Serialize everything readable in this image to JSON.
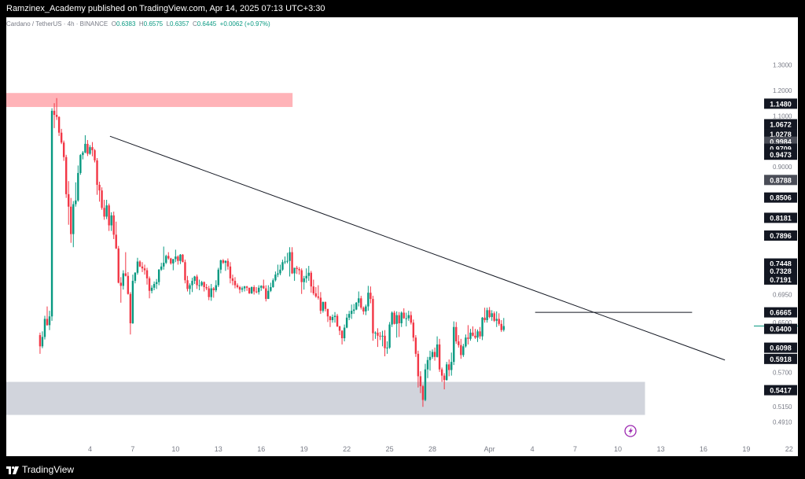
{
  "header": {
    "publish_line": "Ramzinex_Academy published on TradingView.com, Apr 14, 2025 07:13 UTC+3:30"
  },
  "legend": {
    "symbol": "Cardano / TetherUS · 4h · BINANCE",
    "open_label": "O",
    "open": "0.6383",
    "high_label": "H",
    "high": "0.6575",
    "low_label": "L",
    "low": "0.6357",
    "close_label": "C",
    "close": "0.6445",
    "change": "+0.0062 (+0.97%)"
  },
  "footer": {
    "brand": "TradingView"
  },
  "colors": {
    "up": "#089981",
    "down": "#f23645",
    "supply_zone": "#ffb3b8",
    "demand_zone": "#d1d4dc",
    "current_price": "#089981"
  },
  "chart_data": {
    "type": "candlestick",
    "title": "Cardano / TetherUS · 4h · BINANCE",
    "x_ticks": [
      "4",
      "7",
      "10",
      "13",
      "16",
      "19",
      "22",
      "25",
      "28",
      "Apr",
      "4",
      "7",
      "10",
      "13",
      "16",
      "19",
      "22"
    ],
    "y_ticks": [
      "1.3000",
      "1.2000",
      "1.1000",
      "1.0500",
      "0.9000",
      "0.6950",
      "0.6500",
      "0.5700",
      "0.5150",
      "0.4910"
    ],
    "y_range": [
      0.47,
      1.32
    ],
    "price_labels": [
      {
        "value": "1.1480",
        "style": "dark"
      },
      {
        "value": "1.0672",
        "style": "dark"
      },
      {
        "value": "1.0278",
        "style": "dark"
      },
      {
        "value": "0.9984",
        "style": "gray"
      },
      {
        "value": "0.9709",
        "style": "dark"
      },
      {
        "value": "0.9473",
        "style": "dark"
      },
      {
        "value": "0.8788",
        "style": "gray"
      },
      {
        "value": "0.8506",
        "style": "dark"
      },
      {
        "value": "0.8181",
        "style": "dark"
      },
      {
        "value": "0.7896",
        "style": "dark"
      },
      {
        "value": "0.7448",
        "style": "dark"
      },
      {
        "value": "0.7328",
        "style": "dark"
      },
      {
        "value": "0.7191",
        "style": "dark"
      },
      {
        "value": "0.6665",
        "style": "dark"
      },
      {
        "value": "0.6400",
        "style": "dark"
      },
      {
        "value": "0.6098",
        "style": "dark"
      },
      {
        "value": "0.5918",
        "style": "dark"
      },
      {
        "value": "0.5417",
        "style": "dark"
      }
    ],
    "current_price": 0.6445,
    "zones": [
      {
        "name": "supply",
        "from_day": 1,
        "to_day": 18.2,
        "low": 1.135,
        "high": 1.19
      },
      {
        "name": "demand",
        "from_day": 1,
        "to_day": 42.9,
        "low": 0.502,
        "high": 0.555
      }
    ],
    "trendlines": [
      {
        "name": "descending-trendline",
        "x1_day": 5.4,
        "y1": 1.02,
        "x2_day": 48.5,
        "y2": 0.59
      },
      {
        "name": "resistance-line",
        "x1_day": 35.2,
        "y1": 0.6665,
        "x2_day": 46.2,
        "y2": 0.6665
      }
    ],
    "candles_4h": [
      [
        0.63,
        0.634,
        0.6,
        0.612
      ],
      [
        0.612,
        0.636,
        0.609,
        0.627
      ],
      [
        0.627,
        0.661,
        0.623,
        0.656
      ],
      [
        0.656,
        0.676,
        0.645,
        0.646
      ],
      [
        0.646,
        0.669,
        0.638,
        0.66
      ],
      [
        0.66,
        1.13,
        0.653,
        1.12
      ],
      [
        1.12,
        1.15,
        1.052,
        1.104
      ],
      [
        1.104,
        1.17,
        1.084,
        1.096
      ],
      [
        1.096,
        1.098,
        1.021,
        1.034
      ],
      [
        1.034,
        1.049,
        0.989,
        0.995
      ],
      [
        0.995,
        1.003,
        0.923,
        0.938
      ],
      [
        0.938,
        0.947,
        0.85,
        0.856
      ],
      [
        0.856,
        0.877,
        0.807,
        0.836
      ],
      [
        0.836,
        0.85,
        0.778,
        0.792
      ],
      [
        0.792,
        0.845,
        0.771,
        0.84
      ],
      [
        0.84,
        0.875,
        0.836,
        0.846
      ],
      [
        0.846,
        0.905,
        0.844,
        0.89
      ],
      [
        0.89,
        0.95,
        0.887,
        0.946
      ],
      [
        0.946,
        0.962,
        0.929,
        0.956
      ],
      [
        0.956,
        1.024,
        0.953,
        0.99
      ],
      [
        0.99,
        1.005,
        0.942,
        0.951
      ],
      [
        0.951,
        0.985,
        0.947,
        0.977
      ],
      [
        0.977,
        0.997,
        0.941,
        0.965
      ],
      [
        0.965,
        0.97,
        0.917,
        0.925
      ],
      [
        0.925,
        0.934,
        0.855,
        0.871
      ],
      [
        0.871,
        0.876,
        0.844,
        0.862
      ],
      [
        0.862,
        0.867,
        0.831,
        0.834
      ],
      [
        0.834,
        0.847,
        0.815,
        0.82
      ],
      [
        0.82,
        0.847,
        0.816,
        0.838
      ],
      [
        0.838,
        0.841,
        0.797,
        0.806
      ],
      [
        0.806,
        0.827,
        0.797,
        0.822
      ],
      [
        0.822,
        0.828,
        0.784,
        0.791
      ],
      [
        0.791,
        0.812,
        0.768,
        0.769
      ],
      [
        0.769,
        0.773,
        0.713,
        0.714
      ],
      [
        0.714,
        0.723,
        0.682,
        0.709
      ],
      [
        0.709,
        0.734,
        0.703,
        0.729
      ],
      [
        0.729,
        0.763,
        0.724,
        0.725
      ],
      [
        0.725,
        0.731,
        0.695,
        0.696
      ],
      [
        0.696,
        0.699,
        0.631,
        0.649
      ],
      [
        0.649,
        0.727,
        0.648,
        0.717
      ],
      [
        0.717,
        0.731,
        0.713,
        0.73
      ],
      [
        0.73,
        0.754,
        0.727,
        0.748
      ],
      [
        0.748,
        0.75,
        0.739,
        0.74
      ],
      [
        0.74,
        0.747,
        0.731,
        0.737
      ],
      [
        0.737,
        0.743,
        0.727,
        0.734
      ],
      [
        0.734,
        0.738,
        0.711,
        0.721
      ],
      [
        0.721,
        0.724,
        0.689,
        0.701
      ],
      [
        0.701,
        0.71,
        0.697,
        0.706
      ],
      [
        0.706,
        0.716,
        0.702,
        0.712
      ],
      [
        0.712,
        0.72,
        0.704,
        0.715
      ],
      [
        0.715,
        0.736,
        0.71,
        0.735
      ],
      [
        0.735,
        0.746,
        0.733,
        0.74
      ],
      [
        0.74,
        0.772,
        0.735,
        0.746
      ],
      [
        0.746,
        0.759,
        0.744,
        0.757
      ],
      [
        0.757,
        0.763,
        0.751,
        0.753
      ],
      [
        0.753,
        0.754,
        0.743,
        0.745
      ],
      [
        0.745,
        0.752,
        0.734,
        0.752
      ],
      [
        0.752,
        0.767,
        0.747,
        0.756
      ],
      [
        0.756,
        0.758,
        0.743,
        0.749
      ],
      [
        0.749,
        0.76,
        0.744,
        0.759
      ],
      [
        0.759,
        0.76,
        0.747,
        0.747
      ],
      [
        0.747,
        0.751,
        0.713,
        0.718
      ],
      [
        0.718,
        0.725,
        0.7,
        0.704
      ],
      [
        0.704,
        0.713,
        0.695,
        0.71
      ],
      [
        0.71,
        0.722,
        0.699,
        0.717
      ],
      [
        0.717,
        0.725,
        0.712,
        0.724
      ],
      [
        0.724,
        0.727,
        0.704,
        0.71
      ],
      [
        0.71,
        0.719,
        0.702,
        0.71
      ],
      [
        0.71,
        0.717,
        0.708,
        0.715
      ],
      [
        0.715,
        0.716,
        0.7,
        0.707
      ],
      [
        0.707,
        0.712,
        0.702,
        0.705
      ],
      [
        0.705,
        0.709,
        0.686,
        0.691
      ],
      [
        0.691,
        0.712,
        0.685,
        0.705
      ],
      [
        0.705,
        0.707,
        0.69,
        0.702
      ],
      [
        0.702,
        0.718,
        0.699,
        0.71
      ],
      [
        0.71,
        0.738,
        0.707,
        0.735
      ],
      [
        0.735,
        0.751,
        0.729,
        0.75
      ],
      [
        0.75,
        0.752,
        0.744,
        0.746
      ],
      [
        0.746,
        0.75,
        0.733,
        0.749
      ],
      [
        0.749,
        0.753,
        0.735,
        0.74
      ],
      [
        0.74,
        0.747,
        0.713,
        0.721
      ],
      [
        0.721,
        0.727,
        0.71,
        0.717
      ],
      [
        0.717,
        0.723,
        0.705,
        0.71
      ],
      [
        0.71,
        0.713,
        0.705,
        0.707
      ],
      [
        0.707,
        0.709,
        0.697,
        0.703
      ],
      [
        0.703,
        0.708,
        0.699,
        0.705
      ],
      [
        0.705,
        0.709,
        0.7,
        0.708
      ],
      [
        0.708,
        0.709,
        0.701,
        0.706
      ],
      [
        0.706,
        0.706,
        0.696,
        0.697
      ],
      [
        0.697,
        0.708,
        0.696,
        0.707
      ],
      [
        0.707,
        0.71,
        0.695,
        0.7
      ],
      [
        0.7,
        0.707,
        0.697,
        0.699
      ],
      [
        0.699,
        0.71,
        0.695,
        0.706
      ],
      [
        0.706,
        0.71,
        0.701,
        0.709
      ],
      [
        0.709,
        0.719,
        0.704,
        0.705
      ],
      [
        0.705,
        0.71,
        0.684,
        0.688
      ],
      [
        0.688,
        0.71,
        0.688,
        0.701
      ],
      [
        0.701,
        0.714,
        0.699,
        0.707
      ],
      [
        0.707,
        0.721,
        0.706,
        0.718
      ],
      [
        0.718,
        0.732,
        0.716,
        0.727
      ],
      [
        0.727,
        0.743,
        0.723,
        0.729
      ],
      [
        0.729,
        0.743,
        0.726,
        0.735
      ],
      [
        0.735,
        0.751,
        0.733,
        0.747
      ],
      [
        0.747,
        0.756,
        0.744,
        0.748
      ],
      [
        0.748,
        0.762,
        0.745,
        0.749
      ],
      [
        0.749,
        0.771,
        0.724,
        0.763
      ],
      [
        0.763,
        0.771,
        0.728,
        0.729
      ],
      [
        0.729,
        0.738,
        0.717,
        0.738
      ],
      [
        0.738,
        0.741,
        0.728,
        0.736
      ],
      [
        0.736,
        0.739,
        0.727,
        0.734
      ],
      [
        0.734,
        0.737,
        0.696,
        0.715
      ],
      [
        0.715,
        0.725,
        0.703,
        0.721
      ],
      [
        0.721,
        0.737,
        0.714,
        0.725
      ],
      [
        0.725,
        0.741,
        0.717,
        0.73
      ],
      [
        0.73,
        0.733,
        0.698,
        0.708
      ],
      [
        0.708,
        0.719,
        0.694,
        0.697
      ],
      [
        0.697,
        0.707,
        0.69,
        0.692
      ],
      [
        0.692,
        0.71,
        0.687,
        0.69
      ],
      [
        0.69,
        0.699,
        0.664,
        0.669
      ],
      [
        0.669,
        0.684,
        0.666,
        0.683
      ],
      [
        0.683,
        0.684,
        0.668,
        0.672
      ],
      [
        0.672,
        0.672,
        0.651,
        0.66
      ],
      [
        0.66,
        0.661,
        0.643,
        0.654
      ],
      [
        0.654,
        0.663,
        0.65,
        0.659
      ],
      [
        0.659,
        0.667,
        0.65,
        0.661
      ],
      [
        0.661,
        0.664,
        0.643,
        0.644
      ],
      [
        0.644,
        0.645,
        0.63,
        0.637
      ],
      [
        0.637,
        0.638,
        0.615,
        0.625
      ],
      [
        0.625,
        0.647,
        0.62,
        0.642
      ],
      [
        0.642,
        0.664,
        0.641,
        0.658
      ],
      [
        0.658,
        0.669,
        0.654,
        0.664
      ],
      [
        0.664,
        0.679,
        0.656,
        0.669
      ],
      [
        0.669,
        0.68,
        0.664,
        0.671
      ],
      [
        0.671,
        0.683,
        0.67,
        0.682
      ],
      [
        0.682,
        0.7,
        0.676,
        0.689
      ],
      [
        0.689,
        0.693,
        0.671,
        0.674
      ],
      [
        0.674,
        0.676,
        0.663,
        0.668
      ],
      [
        0.668,
        0.679,
        0.662,
        0.676
      ],
      [
        0.676,
        0.709,
        0.669,
        0.698
      ],
      [
        0.698,
        0.708,
        0.681,
        0.688
      ],
      [
        0.688,
        0.693,
        0.621,
        0.633
      ],
      [
        0.633,
        0.636,
        0.624,
        0.634
      ],
      [
        0.634,
        0.641,
        0.611,
        0.629
      ],
      [
        0.629,
        0.635,
        0.622,
        0.628
      ],
      [
        0.628,
        0.637,
        0.612,
        0.629
      ],
      [
        0.629,
        0.638,
        0.596,
        0.609
      ],
      [
        0.609,
        0.62,
        0.6,
        0.61
      ],
      [
        0.61,
        0.651,
        0.608,
        0.647
      ],
      [
        0.647,
        0.668,
        0.643,
        0.666
      ],
      [
        0.666,
        0.669,
        0.647,
        0.648
      ],
      [
        0.648,
        0.668,
        0.626,
        0.662
      ],
      [
        0.662,
        0.667,
        0.627,
        0.649
      ],
      [
        0.649,
        0.668,
        0.643,
        0.666
      ],
      [
        0.666,
        0.673,
        0.656,
        0.657
      ],
      [
        0.657,
        0.666,
        0.644,
        0.657
      ],
      [
        0.657,
        0.669,
        0.653,
        0.662
      ],
      [
        0.662,
        0.668,
        0.647,
        0.65
      ],
      [
        0.65,
        0.655,
        0.62,
        0.626
      ],
      [
        0.626,
        0.63,
        0.595,
        0.6
      ],
      [
        0.6,
        0.605,
        0.546,
        0.564
      ],
      [
        0.564,
        0.572,
        0.537,
        0.548
      ],
      [
        0.548,
        0.55,
        0.515,
        0.526
      ],
      [
        0.526,
        0.584,
        0.524,
        0.575
      ],
      [
        0.575,
        0.595,
        0.561,
        0.59
      ],
      [
        0.59,
        0.605,
        0.573,
        0.595
      ],
      [
        0.595,
        0.607,
        0.592,
        0.603
      ],
      [
        0.603,
        0.61,
        0.589,
        0.595
      ],
      [
        0.595,
        0.628,
        0.594,
        0.615
      ],
      [
        0.615,
        0.624,
        0.571,
        0.575
      ],
      [
        0.575,
        0.578,
        0.555,
        0.565
      ],
      [
        0.565,
        0.569,
        0.543,
        0.558
      ],
      [
        0.558,
        0.587,
        0.557,
        0.583
      ],
      [
        0.583,
        0.591,
        0.564,
        0.574
      ],
      [
        0.574,
        0.602,
        0.565,
        0.587
      ],
      [
        0.587,
        0.652,
        0.582,
        0.643
      ],
      [
        0.643,
        0.651,
        0.616,
        0.62
      ],
      [
        0.62,
        0.63,
        0.61,
        0.614
      ],
      [
        0.614,
        0.624,
        0.592,
        0.598
      ],
      [
        0.598,
        0.616,
        0.595,
        0.612
      ],
      [
        0.612,
        0.631,
        0.61,
        0.626
      ],
      [
        0.626,
        0.646,
        0.615,
        0.624
      ],
      [
        0.624,
        0.64,
        0.621,
        0.634
      ],
      [
        0.634,
        0.644,
        0.628,
        0.629
      ],
      [
        0.629,
        0.64,
        0.624,
        0.626
      ],
      [
        0.626,
        0.639,
        0.619,
        0.636
      ],
      [
        0.636,
        0.643,
        0.624,
        0.628
      ],
      [
        0.628,
        0.659,
        0.622,
        0.658
      ],
      [
        0.658,
        0.674,
        0.65,
        0.654
      ],
      [
        0.654,
        0.674,
        0.65,
        0.67
      ],
      [
        0.67,
        0.675,
        0.657,
        0.659
      ],
      [
        0.659,
        0.67,
        0.653,
        0.665
      ],
      [
        0.665,
        0.668,
        0.651,
        0.653
      ],
      [
        0.653,
        0.668,
        0.643,
        0.656
      ],
      [
        0.656,
        0.665,
        0.645,
        0.648
      ],
      [
        0.648,
        0.654,
        0.635,
        0.638
      ],
      [
        0.6383,
        0.6575,
        0.6357,
        0.6445
      ]
    ]
  }
}
